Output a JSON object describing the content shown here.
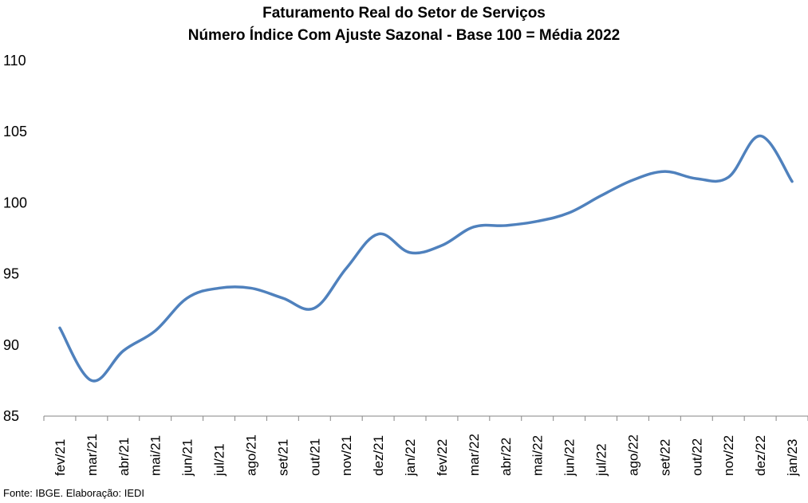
{
  "chart_data": {
    "type": "line",
    "title": "Faturamento Real do Setor de Serviços",
    "subtitle": "Número Índice Com Ajuste Sazonal - Base 100 = Média 2022",
    "xlabel": "",
    "ylabel": "",
    "ylim": [
      85,
      110
    ],
    "yticks": [
      "85",
      "90",
      "95",
      "100",
      "105",
      "110"
    ],
    "grid": false,
    "legend": "none",
    "line_color": "#4F81BD",
    "categories": [
      "fev/21",
      "mar/21",
      "abr/21",
      "mai/21",
      "jun/21",
      "jul/21",
      "ago/21",
      "set/21",
      "out/21",
      "nov/21",
      "dez/21",
      "jan/22",
      "fev/22",
      "mar/22",
      "abr/22",
      "mai/22",
      "jun/22",
      "jul/22",
      "ago/22",
      "set/22",
      "out/22",
      "nov/22",
      "dez/22",
      "jan/23"
    ],
    "series": [
      {
        "values": [
          91.2,
          87.5,
          89.6,
          91.0,
          93.3,
          94.0,
          94.0,
          93.3,
          92.6,
          95.4,
          97.8,
          96.5,
          97.0,
          98.3,
          98.4,
          98.7,
          99.3,
          100.5,
          101.6,
          102.2,
          101.7,
          101.8,
          104.7,
          101.5
        ]
      }
    ],
    "source": "Fonte: IBGE. Elaboração: IEDI"
  }
}
